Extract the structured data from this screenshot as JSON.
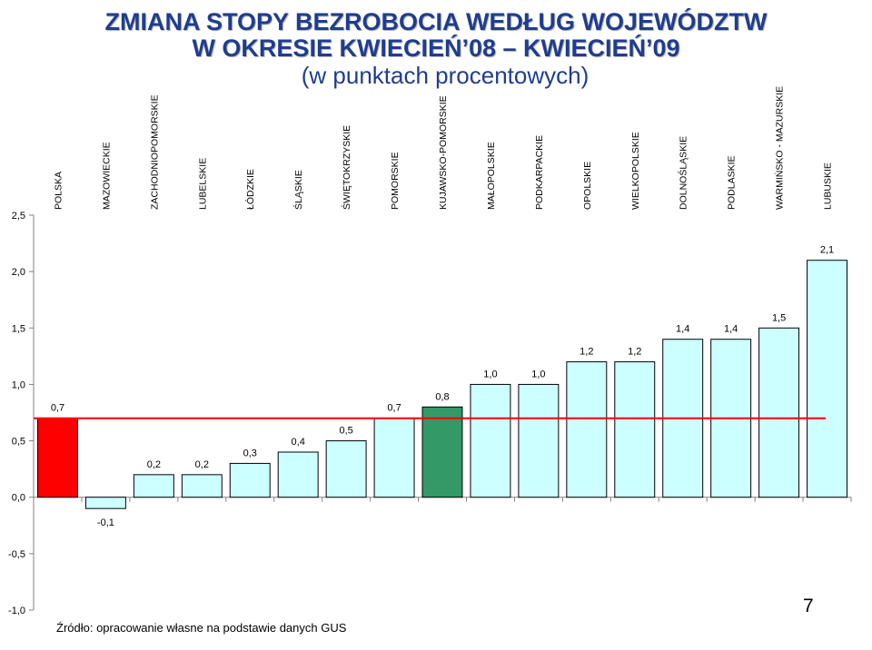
{
  "title_line1": "ZMIANA STOPY BEZROBOCIA WEDŁUG WOJEWÓDZTW",
  "title_line2": "W OKRESIE KWIECIEŃ’08 – KWIECIEŃ’09",
  "subtitle": "(w punktach procentowych)",
  "source": "Źródło: opracowanie własne na podstawie danych GUS",
  "page_number": "7",
  "colors": {
    "title": "#1f3d8f",
    "bar_default": "#ccffff",
    "bar_polska": "#ff0000",
    "bar_highlight": "#339966",
    "reference_line": "#ff0000"
  },
  "chart_data": {
    "type": "bar",
    "categories": [
      "POLSKA",
      "MAZOWIECKIE",
      "ZACHODNIOPOMORSKIE",
      "LUBELSKIE",
      "ŁÓDZKIE",
      "ŚLĄSKIE",
      "ŚWIĘTOKRZYSKIE",
      "POMORSKIE",
      "KUJAWSKO-POMORSKIE",
      "MAŁOPOLSKIE",
      "PODKARPACKIE",
      "OPOLSKIE",
      "WIELKOPOLSKIE",
      "DOLNOŚLĄSKIE",
      "PODLASKIE",
      "WARMIŃSKO - MAZURSKIE",
      "LUBUSKIE"
    ],
    "values": [
      0.7,
      -0.1,
      0.2,
      0.2,
      0.3,
      0.4,
      0.5,
      0.7,
      0.8,
      1.0,
      1.0,
      1.2,
      1.2,
      1.4,
      1.4,
      1.5,
      2.1
    ],
    "value_labels": [
      "0,7",
      "-0,1",
      "0,2",
      "0,2",
      "0,3",
      "0,4",
      "0,5",
      "0,7",
      "0,8",
      "1,0",
      "1,0",
      "1,2",
      "1,2",
      "1,4",
      "1,4",
      "1,5",
      "2,1"
    ],
    "bar_colors": [
      "#ff0000",
      "#ccffff",
      "#ccffff",
      "#ccffff",
      "#ccffff",
      "#ccffff",
      "#ccffff",
      "#ccffff",
      "#339966",
      "#ccffff",
      "#ccffff",
      "#ccffff",
      "#ccffff",
      "#ccffff",
      "#ccffff",
      "#ccffff",
      "#ccffff"
    ],
    "reference_value": 0.7,
    "ylim": [
      -1.0,
      2.5
    ],
    "y_ticks": [
      -1.0,
      -0.5,
      0.0,
      0.5,
      1.0,
      1.5,
      2.0,
      2.5
    ],
    "y_tick_labels": [
      "-1,0",
      "-0,5",
      "0,0",
      "0,5",
      "1,0",
      "1,5",
      "2,0",
      "2,5"
    ],
    "grid": false
  }
}
